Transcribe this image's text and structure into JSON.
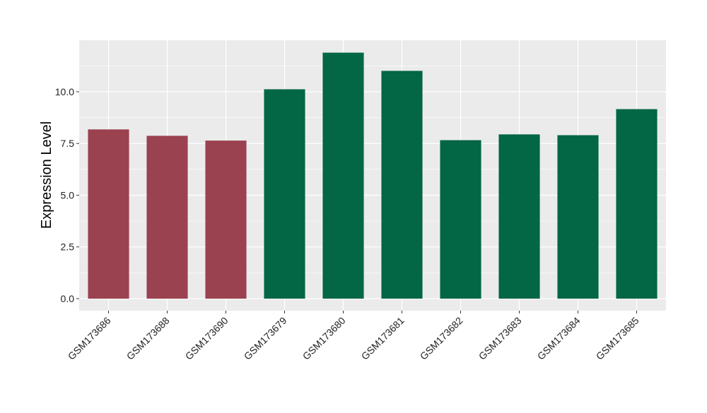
{
  "chart_data": {
    "type": "bar",
    "title": "",
    "xlabel": "",
    "ylabel": "Expression Level",
    "ylim": [
      -0.58,
      12.49
    ],
    "yticks": [
      0,
      2.5,
      5,
      7.5,
      10
    ],
    "ytick_labels": [
      "0.0",
      "2.5",
      "5.0",
      "7.5",
      "10.0"
    ],
    "grid": true,
    "categories": [
      "GSM173686",
      "GSM173688",
      "GSM173690",
      "GSM173679",
      "GSM173680",
      "GSM173681",
      "GSM173682",
      "GSM173683",
      "GSM173684",
      "GSM173685"
    ],
    "values": [
      8.18,
      7.87,
      7.64,
      10.12,
      11.89,
      11.01,
      7.66,
      7.94,
      7.9,
      9.16
    ],
    "groups": [
      "a",
      "a",
      "a",
      "b",
      "b",
      "b",
      "b",
      "b",
      "b",
      "b"
    ],
    "colors": {
      "a": "#9a4250",
      "b": "#036644"
    }
  }
}
